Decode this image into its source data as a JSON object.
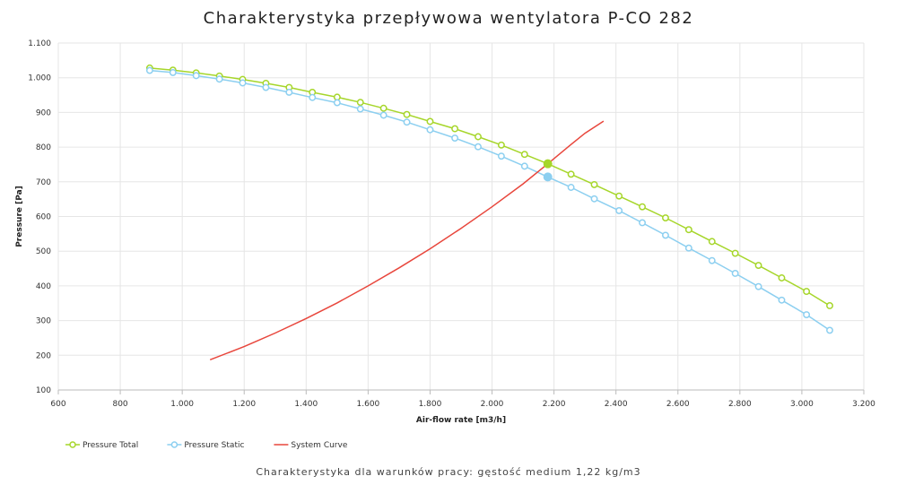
{
  "chart_data": {
    "type": "line",
    "title": "Charakterystyka przepływowa wentylatora P-CO 282",
    "subtitle": "Charakterystyka dla warunków pracy: gęstość medium 1,22 kg/m3",
    "xlabel": "Air-flow rate [m3/h]",
    "ylabel": "Pressure [Pa]",
    "xlim": [
      600,
      3200
    ],
    "ylim": [
      100,
      1100
    ],
    "xticks": [
      600,
      800,
      1000,
      1200,
      1400,
      1600,
      1800,
      2000,
      2200,
      2400,
      2600,
      2800,
      3000,
      3200
    ],
    "xtick_labels": [
      "600",
      "800",
      "1.000",
      "1.200",
      "1.400",
      "1.600",
      "1.800",
      "2.000",
      "2.200",
      "2.400",
      "2.600",
      "2.800",
      "3.000",
      "3.200"
    ],
    "yticks": [
      100,
      200,
      300,
      400,
      500,
      600,
      700,
      800,
      900,
      1000,
      1100
    ],
    "ytick_labels": [
      "100",
      "200",
      "300",
      "400",
      "500",
      "600",
      "700",
      "800",
      "900",
      "1.000",
      "1.100"
    ],
    "grid": true,
    "legend_position": "bottom-left",
    "series": [
      {
        "name": "Pressure Total",
        "color": "#a6d62a",
        "marker": "open-circle",
        "x": [
          895,
          970,
          1045,
          1120,
          1195,
          1270,
          1345,
          1420,
          1500,
          1575,
          1650,
          1725,
          1800,
          1880,
          1955,
          2030,
          2105,
          2180,
          2255,
          2330,
          2410,
          2485,
          2560,
          2635,
          2710,
          2785,
          2860,
          2935,
          3015,
          3090
        ],
        "y": [
          1028,
          1022,
          1014,
          1005,
          995,
          984,
          972,
          958,
          944,
          929,
          912,
          894,
          874,
          853,
          830,
          806,
          779,
          752,
          722,
          692,
          659,
          628,
          596,
          562,
          528,
          494,
          459,
          423,
          384,
          343
        ]
      },
      {
        "name": "Pressure Static",
        "color": "#8ccff0",
        "marker": "open-circle",
        "x": [
          895,
          970,
          1045,
          1120,
          1195,
          1270,
          1345,
          1420,
          1500,
          1575,
          1650,
          1725,
          1800,
          1880,
          1955,
          2030,
          2105,
          2180,
          2255,
          2330,
          2410,
          2485,
          2560,
          2635,
          2710,
          2785,
          2860,
          2935,
          3015,
          3090
        ],
        "y": [
          1021,
          1015,
          1006,
          996,
          985,
          972,
          958,
          943,
          928,
          910,
          892,
          872,
          850,
          826,
          801,
          774,
          745,
          714,
          684,
          651,
          617,
          582,
          546,
          509,
          473,
          436,
          398,
          359,
          317,
          272
        ]
      },
      {
        "name": "System Curve",
        "color": "#e8463c",
        "marker": "none",
        "x": [
          1090,
          1200,
          1300,
          1400,
          1500,
          1600,
          1700,
          1800,
          1900,
          2000,
          2100,
          2180,
          2250,
          2300,
          2360
        ],
        "y": [
          187,
          225,
          264,
          306,
          351,
          400,
          452,
          507,
          566,
          628,
          694,
          752,
          804,
          840,
          875
        ]
      }
    ],
    "operating_points": [
      {
        "series": "Pressure Total",
        "x": 2180,
        "y": 752,
        "color": "#a6d62a"
      },
      {
        "series": "Pressure Static",
        "x": 2180,
        "y": 714,
        "color": "#8ccff0"
      }
    ]
  }
}
